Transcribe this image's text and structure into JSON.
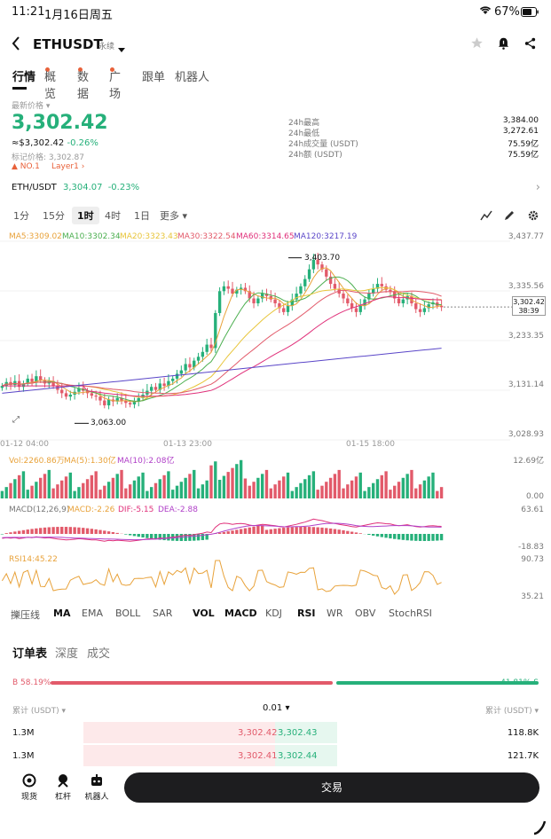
{
  "status_bar": {
    "time": "11:21",
    "date": "1月16日周五",
    "battery": "67%"
  },
  "header": {
    "symbol": "ETHUSDT",
    "contract_type": "永续"
  },
  "tabs": [
    {
      "label": "行情"
    },
    {
      "label": "概览"
    },
    {
      "label": "数据"
    },
    {
      "label": "广场"
    },
    {
      "label": "跟单"
    },
    {
      "label": "机器人"
    }
  ],
  "price_block": {
    "label": "最新价格",
    "last_price": "3,302.42",
    "fiat": "≈$3,302.42",
    "change": "-0.26%",
    "mark_price": "标记价格: 3,302.87",
    "tag_rank": "NO.1",
    "tag_sector": "Layer1"
  },
  "stats_24h": [
    {
      "label": "24h最高",
      "value": "3,384.00"
    },
    {
      "label": "24h最低",
      "value": "3,272.61"
    },
    {
      "label": "24h成交量 (USDT)",
      "value": "75.59亿"
    },
    {
      "label": "24h额 (USDT)",
      "value": "75.59亿"
    }
  ],
  "spot": {
    "pair": "ETH/USDT",
    "price": "3,304.07",
    "change": "-0.23%"
  },
  "timeframes": [
    {
      "label": "1分"
    },
    {
      "label": "15分"
    },
    {
      "label": "1时"
    },
    {
      "label": "4时"
    },
    {
      "label": "1日"
    },
    {
      "label": "更多"
    }
  ],
  "ma_legend": [
    {
      "text": "MA5:3309.02",
      "color": "#e8a23a"
    },
    {
      "text": "MA10:3302.34",
      "color": "#4caf50"
    },
    {
      "text": "MA20:3323.43",
      "color": "#e8c53a"
    },
    {
      "text": "MA30:3322.54",
      "color": "#e25a6a"
    },
    {
      "text": "MA60:3314.65",
      "color": "#e0307a"
    },
    {
      "text": "MA120:3217.19",
      "color": "#5a46c8"
    }
  ],
  "chart_data": {
    "type": "candlestick",
    "y_ticks": [
      "3,437.77",
      "3,335.56",
      "3,233.35",
      "3,131.14",
      "3,028.93"
    ],
    "ylim": [
      3028.93,
      3437.77
    ],
    "x_ticks": [
      "01-12 04:00",
      "01-13 23:00",
      "01-15 18:00"
    ],
    "annot_high": "3,403.70",
    "annot_low": "3,063.00",
    "current_price": "3,302.42",
    "countdown": "38:39",
    "vol_legend": [
      {
        "text": "Vol:2260.86万",
        "color": "#e8a23a"
      },
      {
        "text": "MA(5):1.30亿",
        "color": "#e8a23a"
      },
      {
        "text": "MA(10):2.08亿",
        "color": "#b040c8"
      }
    ],
    "vol_ticks": [
      "12.69亿",
      "0.00"
    ],
    "macd_legend": [
      {
        "text": "MACD(12,26,9)",
        "color": "#777"
      },
      {
        "text": "MACD:-2.26",
        "color": "#e8a23a"
      },
      {
        "text": "DIF:-5.15",
        "color": "#e0307a"
      },
      {
        "text": "DEA:-2.88",
        "color": "#b040c8"
      }
    ],
    "macd_ticks": [
      "63.61",
      "-18.83"
    ],
    "rsi_legend": {
      "text": "RSI14:45.22",
      "color": "#e8a23a"
    },
    "rsi_ticks": [
      "90.73",
      "35.21"
    ],
    "candles": [
      3140,
      3148,
      3142,
      3150,
      3138,
      3145,
      3155,
      3148,
      3160,
      3152,
      3145,
      3150,
      3140,
      3132,
      3125,
      3118,
      3122,
      3128,
      3135,
      3130,
      3125,
      3120,
      3118,
      3110,
      3100,
      3112,
      3108,
      3115,
      3110,
      3105,
      3102,
      3108,
      3115,
      3122,
      3130,
      3138,
      3132,
      3145,
      3140,
      3150,
      3155,
      3165,
      3172,
      3185,
      3178,
      3192,
      3200,
      3210,
      3225,
      3218,
      3290,
      3335,
      3345,
      3340,
      3330,
      3338,
      3342,
      3335,
      3320,
      3310,
      3320,
      3330,
      3325,
      3318,
      3310,
      3300,
      3292,
      3305,
      3318,
      3330,
      3345,
      3360,
      3380,
      3400,
      3390,
      3380,
      3365,
      3350,
      3340,
      3330,
      3320,
      3310,
      3300,
      3292,
      3305,
      3318,
      3330,
      3340,
      3350,
      3345,
      3338,
      3335,
      3320,
      3310,
      3318,
      3325,
      3310,
      3298,
      3292,
      3300,
      3308,
      3312,
      3305,
      3302
    ]
  },
  "indicators": [
    {
      "label": "擽压线"
    },
    {
      "label": "MA"
    },
    {
      "label": "EMA"
    },
    {
      "label": "BOLL"
    },
    {
      "label": "SAR"
    },
    {
      "label": "VOL"
    },
    {
      "label": "MACD"
    },
    {
      "label": "KDJ"
    },
    {
      "label": "RSI"
    },
    {
      "label": "WR"
    },
    {
      "label": "OBV"
    },
    {
      "label": "StochRSI"
    }
  ],
  "orderbook": {
    "tabs": [
      {
        "label": "订单表"
      },
      {
        "label": "深度"
      },
      {
        "label": "成交"
      }
    ],
    "buy_ratio": "B 58.19%",
    "sell_ratio": "41.81% S",
    "buy_fraction": 0.5819,
    "col_left": "累计 (USDT)",
    "precision": "0.01",
    "col_right": "累计 (USDT)",
    "rows": [
      {
        "bid_total": "1.3M",
        "bid": "3,302.42",
        "ask": "3,302.43",
        "ask_total": "118.8K"
      },
      {
        "bid_total": "1.3M",
        "bid": "3,302.41",
        "ask": "3,302.44",
        "ask_total": "121.7K"
      }
    ]
  },
  "bottom_nav": [
    {
      "label": "现货"
    },
    {
      "label": "杠杆"
    },
    {
      "label": "机器人"
    }
  ],
  "trade_button": "交易"
}
